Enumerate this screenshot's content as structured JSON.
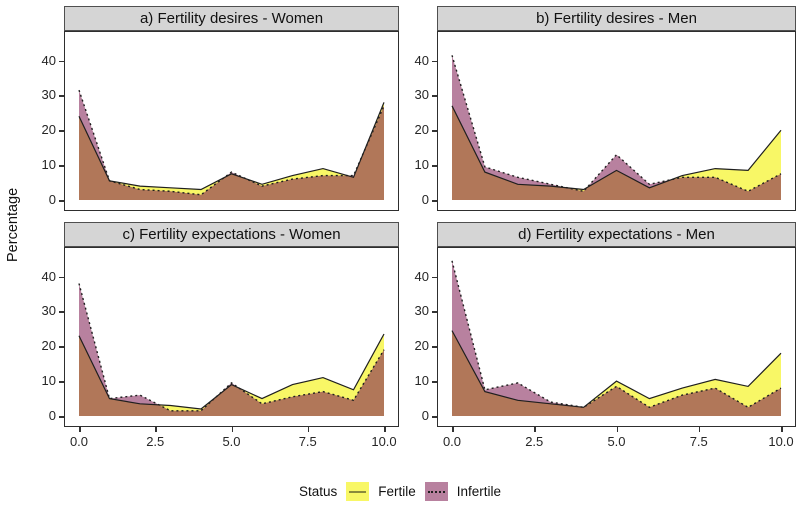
{
  "figure": {
    "ylabel": "Percentage",
    "x_axis": {
      "ticks": [
        "0.0",
        "2.5",
        "5.0",
        "7.5",
        "10.0"
      ],
      "values": [
        0,
        2.5,
        5,
        7.5,
        10
      ]
    },
    "y_axis": {
      "ticks": [
        "0",
        "10",
        "20",
        "30",
        "40"
      ],
      "values": [
        0,
        10,
        20,
        30,
        40
      ]
    },
    "colors": {
      "fertile_fill": "#F8F766",
      "infertile_fill": "#B8819F",
      "overlap_fill": "#B17759",
      "solid_line": "#1f1f1f",
      "dashed_line": "#1f1f1f",
      "strip_bg": "#D5D5D5",
      "panel_border": "#2e2e2e"
    },
    "legend": {
      "title": "Status",
      "items": [
        {
          "label": "Fertile",
          "color": "#F8F766",
          "line_style": "solid"
        },
        {
          "label": "Infertile",
          "color": "#B8819F",
          "line_style": "dotted"
        }
      ]
    }
  },
  "chart_data": [
    {
      "type": "area",
      "title": "a) Fertility desires - Women",
      "x": [
        0,
        1,
        2,
        3,
        4,
        5,
        6,
        7,
        8,
        9,
        10
      ],
      "xlim": [
        0,
        10
      ],
      "ylim": [
        0,
        48
      ],
      "grid": false,
      "series": [
        {
          "name": "Fertile",
          "values": [
            24,
            5.5,
            4,
            3.5,
            3,
            7.5,
            4.5,
            7,
            9,
            6.5,
            28
          ]
        },
        {
          "name": "Infertile",
          "values": [
            31.5,
            5.5,
            3,
            2.5,
            1.5,
            8,
            4,
            6,
            7,
            7,
            27
          ]
        }
      ]
    },
    {
      "type": "area",
      "title": "b) Fertility desires - Men",
      "x": [
        0,
        1,
        2,
        3,
        4,
        5,
        6,
        7,
        8,
        9,
        10
      ],
      "xlim": [
        0,
        10
      ],
      "ylim": [
        0,
        48
      ],
      "grid": false,
      "series": [
        {
          "name": "Fertile",
          "values": [
            27,
            8,
            4.5,
            4,
            3,
            8.5,
            3.5,
            7,
            9,
            8.5,
            20
          ]
        },
        {
          "name": "Infertile",
          "values": [
            41.5,
            9.5,
            6.5,
            4.5,
            2.5,
            13,
            4.5,
            6.5,
            6.5,
            2.5,
            7.5
          ]
        }
      ]
    },
    {
      "type": "area",
      "title": "c) Fertility expectations - Women",
      "x": [
        0,
        1,
        2,
        3,
        4,
        5,
        6,
        7,
        8,
        9,
        10
      ],
      "xlim": [
        0,
        10
      ],
      "ylim": [
        0,
        48
      ],
      "grid": false,
      "series": [
        {
          "name": "Fertile",
          "values": [
            23,
            5,
            3.5,
            3,
            2,
            9,
            5,
            9,
            11,
            7.5,
            23.5
          ]
        },
        {
          "name": "Infertile",
          "values": [
            38,
            5,
            6,
            1.5,
            1.5,
            9.5,
            3.5,
            5.5,
            7,
            4.5,
            19
          ]
        }
      ]
    },
    {
      "type": "area",
      "title": "d) Fertility expectations - Men",
      "x": [
        0,
        1,
        2,
        3,
        4,
        5,
        6,
        7,
        8,
        9,
        10
      ],
      "xlim": [
        0,
        10
      ],
      "ylim": [
        0,
        48
      ],
      "grid": false,
      "series": [
        {
          "name": "Fertile",
          "values": [
            24.5,
            7,
            4.5,
            3.5,
            2.5,
            10,
            5,
            8,
            10.5,
            8.5,
            18
          ]
        },
        {
          "name": "Infertile",
          "values": [
            44.5,
            7.5,
            9.5,
            4,
            2.5,
            8.5,
            2.5,
            6,
            8,
            2.5,
            8
          ]
        }
      ]
    }
  ]
}
